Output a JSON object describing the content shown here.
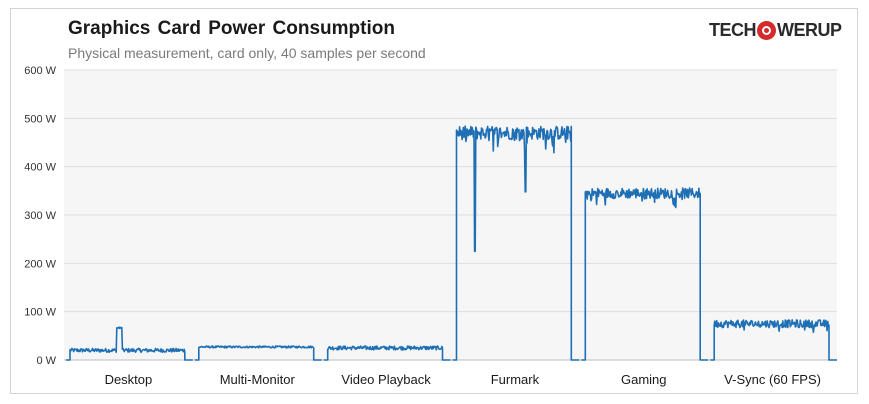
{
  "chart_data": {
    "type": "line",
    "title": "Graphics Card Power Consumption",
    "subtitle": "Physical measurement, card only, 40 samples per second",
    "brand": "TECHPOWERUP",
    "ylim": [
      0,
      600
    ],
    "yticks": [
      "0 W",
      "100 W",
      "200 W",
      "300 W",
      "400 W",
      "500 W",
      "600 W"
    ],
    "ytick_values": [
      0,
      100,
      200,
      300,
      400,
      500,
      600
    ],
    "grid": true,
    "series_color": "#1f6fb5",
    "categories": [
      "Desktop",
      "Multi-Monitor",
      "Video Playback",
      "Furmark",
      "Gaming",
      "V-Sync (60 FPS)"
    ],
    "segments": [
      {
        "name": "Desktop",
        "base": 20,
        "noise": 4,
        "spike": {
          "at": 0.43,
          "width": 0.05,
          "value": 68
        }
      },
      {
        "name": "Multi-Monitor",
        "base": 27,
        "noise": 2
      },
      {
        "name": "Video Playback",
        "base": 25,
        "noise": 4
      },
      {
        "name": "Furmark",
        "base": 470,
        "noise": 14,
        "dips": [
          {
            "at": 0.16,
            "value": 225
          },
          {
            "at": 0.6,
            "value": 348
          }
        ]
      },
      {
        "name": "Gaming",
        "base": 345,
        "noise": 11
      },
      {
        "name": "V-Sync (60 FPS)",
        "base": 75,
        "noise": 8
      }
    ]
  }
}
